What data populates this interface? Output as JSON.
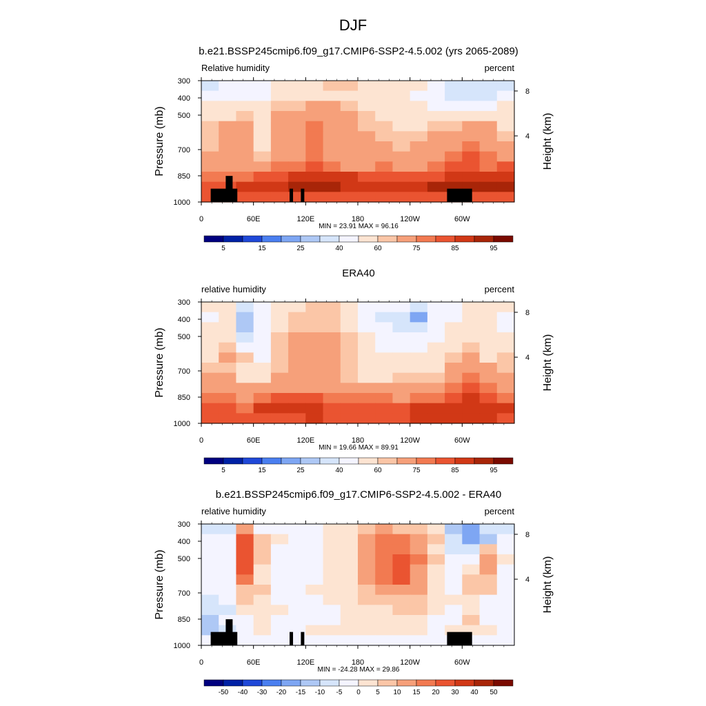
{
  "title": "DJF",
  "chart_data": [
    {
      "type": "heatmap",
      "title": "b.e21.BSSP245cmip6.f09_g17.CMIP6-SSP2-4.5.002 (yrs 2065-2089)",
      "left_label": "Relative humidity",
      "right_label": "percent",
      "ylabel": "Pressure (mb)",
      "y2label": "Height (km)",
      "xticks": [
        "0",
        "60E",
        "120E",
        "180",
        "120W",
        "60W"
      ],
      "yticks": [
        "300",
        "400",
        "500",
        "700",
        "850",
        "1000"
      ],
      "y2ticks": [
        "8",
        "4"
      ],
      "stats": "MIN =  23.91   MAX =  96.16",
      "colorbar_labels": [
        "5",
        "15",
        "25",
        "40",
        "60",
        "75",
        "85",
        "95"
      ],
      "colorbar_colors": [
        "#00007f",
        "#0021a5",
        "#1f48d8",
        "#4a7ff0",
        "#7ea6f3",
        "#aec8f5",
        "#d6e5fb",
        "#f4f4ff",
        "#fde4d2",
        "#fbc6a7",
        "#f6a07a",
        "#f27a51",
        "#ea5431",
        "#d13816",
        "#a82508",
        "#7a0a00"
      ],
      "value_range": [
        23.91,
        96.16
      ],
      "scheme": "rh",
      "field": [
        [
          39.5,
          41.9,
          43.6,
          48.0,
          56.9,
          58.3,
          59.2,
          60.1,
          60.0,
          57.4,
          54.8,
          52.6,
          50.8,
          45.7,
          35.5,
          34.9,
          34.8,
          37.3
        ],
        [
          44.6,
          48.4,
          45.8,
          48.4,
          56.4,
          58.2,
          59.1,
          58.6,
          59.1,
          56.6,
          53.7,
          53.2,
          47.9,
          44.5,
          35.2,
          33.2,
          38.5,
          43.8
        ],
        [
          50.9,
          54.3,
          52.7,
          51.1,
          61.4,
          64.6,
          65.7,
          65.6,
          64.2,
          57.6,
          54.6,
          53.8,
          50.4,
          47.8,
          42.0,
          47.8,
          45.8,
          50.1
        ],
        [
          52.9,
          58.8,
          60.3,
          52.8,
          68.1,
          69.6,
          72.1,
          70.8,
          68.9,
          62.6,
          57.0,
          56.6,
          54.6,
          55.2,
          52.7,
          56.8,
          58.1,
          53.3
        ],
        [
          61.2,
          67.3,
          66.8,
          52.1,
          69.1,
          70.9,
          76.2,
          71.2,
          69.8,
          64.6,
          60.3,
          59.4,
          59.2,
          60.8,
          63.9,
          65.5,
          67.9,
          58.9
        ],
        [
          61.9,
          74.8,
          72.6,
          53.4,
          71.1,
          73.6,
          75.5,
          72.8,
          70.8,
          66.9,
          63.5,
          61.1,
          62.9,
          65.2,
          68.6,
          70.9,
          67.2,
          64.9
        ],
        [
          62.2,
          73.2,
          73.9,
          55.7,
          73.3,
          74.2,
          78.1,
          74.6,
          71.6,
          67.6,
          66.2,
          64.3,
          65.0,
          66.5,
          71.2,
          78.3,
          71.7,
          66.5
        ],
        [
          67.3,
          72.2,
          71.9,
          61.3,
          74.9,
          74.4,
          76.3,
          73.9,
          71.8,
          68.6,
          68.8,
          68.1,
          68.1,
          71.1,
          75.3,
          80.3,
          76.9,
          71.7
        ],
        [
          69.4,
          70.2,
          67.6,
          70.1,
          76.5,
          78.2,
          80.3,
          78.5,
          74.5,
          74.1,
          75.3,
          71.8,
          72.0,
          75.1,
          80.3,
          83.5,
          78.9,
          80.6
        ],
        [
          75.8,
          76.5,
          77.2,
          81.2,
          81.9,
          85.1,
          86.3,
          87.1,
          85.5,
          82.1,
          80.8,
          81.0,
          82.9,
          84.7,
          85.8,
          87.6,
          88.1,
          86.7
        ],
        [
          80.7,
          84.7,
          85.0,
          89.1,
          89.4,
          91.1,
          91.1,
          90.1,
          89.9,
          88.0,
          86.1,
          88.6,
          88.8,
          91.1,
          90.3,
          93.2,
          92.0,
          91.4
        ],
        [
          82.2,
          82.8,
          83.4,
          82.7,
          83.9,
          84.6,
          83.6,
          83.3,
          82.7,
          82.6,
          82.9,
          82.2,
          83.5,
          82.4,
          82.9,
          84.0,
          83.5,
          83.2
        ]
      ],
      "mask": true
    },
    {
      "type": "heatmap",
      "title": "ERA40",
      "left_label": "relative humidity",
      "right_label": "percent",
      "ylabel": "Pressure (mb)",
      "y2label": "Height (km)",
      "xticks": [
        "0",
        "60E",
        "120E",
        "180",
        "120W",
        "60W"
      ],
      "yticks": [
        "300",
        "400",
        "500",
        "700",
        "850",
        "1000"
      ],
      "y2ticks": [
        "8",
        "4"
      ],
      "stats": "MIN =  19.66   MAX =  89.91",
      "colorbar_labels": [
        "5",
        "15",
        "25",
        "40",
        "60",
        "75",
        "85",
        "95"
      ],
      "colorbar_colors": [
        "#00007f",
        "#0021a5",
        "#1f48d8",
        "#4a7ff0",
        "#7ea6f3",
        "#aec8f5",
        "#d6e5fb",
        "#f4f4ff",
        "#fde4d2",
        "#fbc6a7",
        "#f6a07a",
        "#f27a51",
        "#ea5431",
        "#d13816",
        "#a82508",
        "#7a0a00"
      ],
      "value_range": [
        19.66,
        89.91
      ],
      "scheme": "rh",
      "field": [
        [
          51.5,
          53.2,
          30.3,
          46.8,
          58.5,
          59.6,
          60.9,
          60.9,
          57.9,
          47.3,
          43.5,
          40.2,
          37.0,
          41.8,
          48.5,
          55.7,
          54.4,
          55.5
        ],
        [
          49.3,
          52.1,
          25.6,
          45.8,
          59.0,
          60.2,
          63.4,
          62.8,
          57.9,
          45.5,
          39.5,
          33.8,
          24.5,
          40.5,
          47.3,
          51.6,
          52.4,
          48.7
        ],
        [
          51.6,
          55.3,
          29.9,
          43.2,
          59.5,
          62.8,
          64.3,
          64.0,
          59.7,
          47.8,
          43.6,
          36.6,
          31.0,
          44.7,
          51.9,
          51.5,
          50.3,
          49.7
        ],
        [
          53.7,
          58.3,
          35.2,
          42.1,
          60.4,
          67.1,
          69.6,
          69.2,
          62.1,
          50.4,
          45.4,
          40.4,
          41.1,
          48.9,
          55.1,
          59.4,
          52.6,
          54.4
        ],
        [
          55.5,
          63.6,
          44.0,
          43.8,
          61.2,
          68.8,
          70.6,
          70.5,
          62.0,
          52.1,
          49.2,
          43.2,
          45.7,
          52.2,
          58.2,
          63.0,
          55.0,
          55.3
        ],
        [
          59.8,
          66.1,
          60.3,
          49.1,
          62.4,
          69.3,
          70.3,
          67.3,
          60.3,
          54.2,
          50.3,
          50.7,
          50.4,
          55.3,
          62.9,
          65.2,
          57.5,
          60.4
        ],
        [
          60.9,
          63.8,
          58.4,
          51.6,
          62.2,
          70.5,
          71.6,
          68.7,
          62.4,
          55.7,
          55.9,
          55.1,
          55.4,
          59.2,
          66.2,
          70.6,
          66.2,
          63.5
        ],
        [
          66.0,
          65.8,
          58.4,
          55.4,
          65.6,
          69.4,
          69.3,
          68.3,
          62.8,
          59.9,
          58.9,
          61.7,
          61.6,
          64.4,
          69.4,
          77.0,
          73.6,
          66.9
        ],
        [
          69.4,
          69.5,
          65.4,
          65.6,
          68.6,
          72.8,
          73.7,
          71.3,
          68.7,
          65.9,
          67.0,
          67.3,
          69.5,
          71.5,
          75.7,
          81.5,
          78.4,
          73.9
        ],
        [
          75.4,
          77.7,
          73.3,
          75.2,
          80.7,
          80.3,
          80.6,
          78.9,
          79.1,
          76.2,
          75.0,
          74.7,
          77.0,
          78.0,
          82.3,
          86.0,
          81.9,
          78.8
        ],
        [
          81.6,
          82.8,
          79.3,
          85.5,
          85.4,
          86.3,
          86.0,
          84.4,
          84.9,
          83.7,
          83.7,
          84.0,
          85.1,
          86.4,
          87.3,
          88.2,
          87.4,
          85.4
        ],
        [
          81.4,
          83.2,
          81.0,
          82.7,
          83.5,
          84.7,
          85.3,
          83.9,
          83.2,
          83.2,
          83.8,
          84.0,
          85.7,
          87.0,
          86.3,
          86.0,
          86.2,
          84.9
        ]
      ],
      "mask": false
    },
    {
      "type": "heatmap",
      "title": "b.e21.BSSP245cmip6.f09_g17.CMIP6-SSP2-4.5.002 - ERA40",
      "left_label": "relative humidity",
      "right_label": "percent",
      "ylabel": "Pressure (mb)",
      "y2label": "Height (km)",
      "xticks": [
        "0",
        "60E",
        "120E",
        "180",
        "120W",
        "60W"
      ],
      "yticks": [
        "300",
        "400",
        "500",
        "700",
        "850",
        "1000"
      ],
      "y2ticks": [
        "8",
        "4"
      ],
      "stats": "MIN = -24.28   MAX =  29.86",
      "colorbar_labels": [
        "-50",
        "-40",
        "-30",
        "-20",
        "-15",
        "-10",
        "-5",
        "0",
        "5",
        "10",
        "15",
        "20",
        "30",
        "40",
        "50"
      ],
      "colorbar_colors": [
        "#00007f",
        "#0021a5",
        "#1f48d8",
        "#4a7ff0",
        "#7ea6f3",
        "#aec8f5",
        "#d6e5fb",
        "#f4f4ff",
        "#fde4d2",
        "#fbc6a7",
        "#f6a07a",
        "#f27a51",
        "#ea5431",
        "#d13816",
        "#a82508",
        "#7a0a00"
      ],
      "value_range": [
        -24.28,
        29.86
      ],
      "scheme": "diff",
      "field": [
        [
          -7.6,
          -6.7,
          13.5,
          -1.4,
          -2.9,
          -1.4,
          -0.2,
          2.3,
          1.3,
          5.5,
          14.0,
          9.8,
          5.6,
          4.5,
          -14.3,
          -19.6,
          -6.7,
          -7.0
        ],
        [
          -3.0,
          -1.1,
          22.5,
          6.0,
          0.7,
          -2.5,
          -3.5,
          1.2,
          0.3,
          10.8,
          19.0,
          17.1,
          11.6,
          5.3,
          -6.8,
          -15.1,
          -10.5,
          -4.7
        ],
        [
          -2.6,
          -2.0,
          24.7,
          7.8,
          -0.1,
          -2.1,
          -0.6,
          2.3,
          1.5,
          11.3,
          18.5,
          18.4,
          13.2,
          4.5,
          -6.0,
          -6.7,
          8.7,
          -0.5
        ],
        [
          -0.6,
          -3.2,
          22.6,
          8.3,
          -1.5,
          -3.0,
          -2.7,
          0.5,
          3.1,
          11.4,
          17.8,
          20.3,
          15.3,
          6.0,
          -4.8,
          -1.2,
          13.8,
          0.1
        ],
        [
          -2.7,
          -0.7,
          22.9,
          4.4,
          -0.3,
          -1.5,
          -0.8,
          0.5,
          2.3,
          11.3,
          17.4,
          24.0,
          14.2,
          3.8,
          -3.8,
          4.1,
          11.5,
          -4.7
        ],
        [
          -2.3,
          -1.7,
          16.6,
          4.0,
          -3.0,
          -1.1,
          -2.3,
          1.5,
          2.9,
          10.4,
          17.0,
          23.2,
          11.5,
          3.1,
          -3.4,
          8.9,
          7.3,
          -4.3
        ],
        [
          -3.6,
          -4.0,
          8.8,
          5.9,
          -3.1,
          -0.8,
          1.2,
          2.3,
          2.8,
          8.8,
          14.0,
          14.1,
          12.3,
          3.3,
          -3.0,
          6.3,
          6.9,
          -5.0
        ],
        [
          -5.2,
          -4.8,
          5.6,
          3.6,
          -1.0,
          -0.2,
          -1.3,
          0.2,
          1.4,
          7.7,
          8.7,
          9.5,
          9.2,
          3.3,
          0.6,
          4.6,
          -0.2,
          -3.8
        ],
        [
          -7.2,
          -5.2,
          2.1,
          0.4,
          0.1,
          -1.7,
          -2.8,
          -1.7,
          0.8,
          4.8,
          4.4,
          5.1,
          5.4,
          1.4,
          -0.5,
          3.6,
          -1.5,
          -4.6
        ],
        [
          -13.3,
          -4.1,
          -3.6,
          0.7,
          -0.8,
          -0.7,
          -1.7,
          -0.1,
          0.7,
          1.8,
          2.6,
          3.6,
          3.1,
          -0.9,
          -0.1,
          5.3,
          -1.9,
          -3.3
        ],
        [
          -11.9,
          -8.6,
          -1.7,
          1.2,
          -0.1,
          -0.2,
          0.5,
          0.6,
          1.9,
          2.6,
          1.7,
          3.3,
          2.5,
          -0.2,
          1.6,
          3.5,
          2.2,
          -0.9
        ],
        [
          -1.8,
          -1.8,
          -2.2,
          -1.6,
          -1.9,
          -2.1,
          -1.9,
          -1.8,
          -1.6,
          -1.9,
          -1.9,
          -2.1,
          -2.0,
          -1.9,
          -2.1,
          -1.9,
          -2.1,
          -1.9
        ]
      ],
      "mask": true
    }
  ]
}
